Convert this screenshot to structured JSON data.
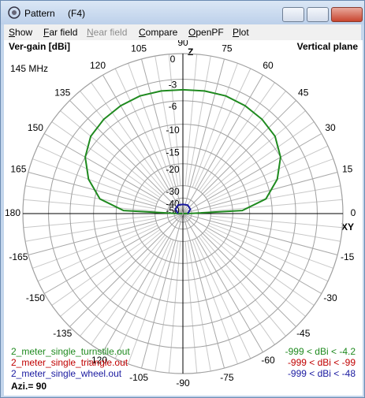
{
  "window": {
    "title": "Pattern",
    "title_key": "(F4)"
  },
  "menu": [
    "Show",
    "Far field",
    "Near field",
    "Compare",
    "OpenPF",
    "Plot"
  ],
  "plot": {
    "y_label": "Ver-gain [dBi]",
    "plane": "Vertical plane",
    "frequency": "145 MHz",
    "z_label": "Z",
    "xy_label": "XY",
    "azimuth": "Azi.= 90",
    "angle_ticks": [
      0,
      15,
      30,
      45,
      60,
      75,
      90,
      105,
      120,
      135,
      150,
      165,
      180,
      -15,
      -30,
      -45,
      -60,
      -75,
      -90,
      -105,
      -120,
      -135,
      -150,
      -165
    ],
    "ring_ticks": [
      0,
      -3,
      -6,
      -10,
      -15,
      -20,
      -30,
      -40,
      -50
    ],
    "series": [
      {
        "name": "2_meter_single_turnstile.out",
        "range": "-999 < dBi < -4.2",
        "color": "#1f8a1f",
        "angles": [
          0,
          1,
          3,
          10,
          20,
          30,
          40,
          50,
          60,
          70,
          80,
          90,
          100,
          110,
          120,
          130,
          140,
          150,
          160,
          170,
          177,
          179,
          180
        ],
        "gain": [
          -99,
          -50,
          -17,
          -11,
          -8,
          -6,
          -4.9,
          -4.5,
          -4.3,
          -4.2,
          -4.3,
          -4.4,
          -4.3,
          -4.2,
          -4.3,
          -4.5,
          -4.9,
          -6,
          -8,
          -11,
          -17,
          -50,
          -99
        ]
      },
      {
        "name": "2_meter_single_triangle.out",
        "range": "-999 < dBi < -99",
        "color": "#c00000"
      },
      {
        "name": "2_meter_single_wheel.out",
        "range": "-999 < dBi < -48",
        "color": "#1a1aa0",
        "angles": [
          0,
          30,
          60,
          90,
          120,
          150,
          180
        ],
        "gain": [
          -60,
          -50,
          -48,
          -49,
          -48,
          -50,
          -60
        ]
      }
    ]
  }
}
